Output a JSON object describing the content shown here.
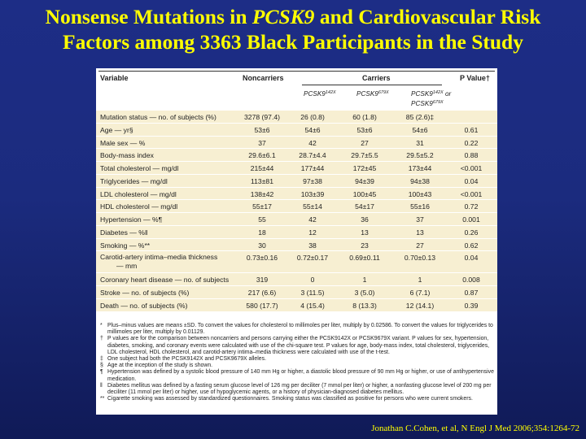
{
  "title": {
    "line1_pre": "Nonsense Mutations in ",
    "line1_gene": "PCSK9",
    "line1_post": " and Cardiovascular Risk",
    "line2": "Factors among 3363 Black Participants in the Study"
  },
  "table": {
    "headers": {
      "variable": "Variable",
      "noncarriers": "Noncarriers",
      "carriers": "Carriers",
      "pvalue": "P Value†",
      "sub1_gene": "PCSK9",
      "sub1_sup": "142X",
      "sub2_gene": "PCSK9",
      "sub2_sup": "679X",
      "sub3_gene_a": "PCSK9",
      "sub3_sup_a": "142X",
      "sub3_or": " or",
      "sub3_gene_b": "PCSK9",
      "sub3_sup_b": "679X"
    },
    "rows": [
      {
        "label": "Mutation status — no. of subjects (%)",
        "values": [
          "3278 (97.4)",
          "26 (0.8)",
          "60 (1.8)",
          "85 (2.6)‡",
          ""
        ]
      },
      {
        "label": "Age — yr§",
        "values": [
          "53±6",
          "54±6",
          "53±6",
          "54±6",
          "0.61"
        ]
      },
      {
        "label": "Male sex — %",
        "values": [
          "37",
          "42",
          "27",
          "31",
          "0.22"
        ]
      },
      {
        "label": "Body-mass index",
        "values": [
          "29.6±6.1",
          "28.7±4.4",
          "29.7±5.5",
          "29.5±5.2",
          "0.88"
        ]
      },
      {
        "label": "Total cholesterol — mg/dl",
        "values": [
          "215±44",
          "177±44",
          "172±45",
          "173±44",
          "<0.001"
        ]
      },
      {
        "label": "Triglycerides — mg/dl",
        "values": [
          "113±81",
          "97±38",
          "94±39",
          "94±38",
          "0.04"
        ]
      },
      {
        "label": "LDL cholesterol — mg/dl",
        "values": [
          "138±42",
          "103±39",
          "100±45",
          "100±43",
          "<0.001"
        ]
      },
      {
        "label": "HDL cholesterol — mg/dl",
        "values": [
          "55±17",
          "55±14",
          "54±17",
          "55±16",
          "0.72"
        ]
      },
      {
        "label": "Hypertension — %¶",
        "values": [
          "55",
          "42",
          "36",
          "37",
          "0.001"
        ]
      },
      {
        "label": "Diabetes — %‖",
        "values": [
          "18",
          "12",
          "13",
          "13",
          "0.26"
        ]
      },
      {
        "label": "Smoking — %**",
        "values": [
          "30",
          "38",
          "23",
          "27",
          "0.62"
        ]
      },
      {
        "label": "Carotid-artery intima–media thickness",
        "label2": "— mm",
        "values": [
          "0.73±0.16",
          "0.72±0.17",
          "0.69±0.11",
          "0.70±0.13",
          "0.04"
        ]
      },
      {
        "label": "Coronary heart disease — no. of subjects",
        "values": [
          "319",
          "0",
          "1",
          "1",
          "0.008"
        ]
      },
      {
        "label": "Stroke — no. of subjects (%)",
        "values": [
          "217 (6.6)",
          "3 (11.5)",
          "3 (5.0)",
          "6 (7.1)",
          "0.87"
        ]
      },
      {
        "label": "Death — no. of subjects (%)",
        "values": [
          "580 (17.7)",
          "4 (15.4)",
          "8 (13.3)",
          "12 (14.1)",
          "0.39"
        ]
      }
    ]
  },
  "footnotes": [
    {
      "sym": "*",
      "text": "Plus–minus values are means ±SD. To convert the values for cholesterol to millimoles per liter, multiply by 0.02586. To convert the values for triglycerides to millimoles per liter, multiply by 0.01129."
    },
    {
      "sym": "†",
      "text": "P values are for the comparison between noncarriers and persons carrying either the PCSK9142X or PCSK9679X variant. P values for sex, hypertension, diabetes, smoking, and coronary events were calculated with use of the chi-square test. P values for age, body-mass index, total cholesterol, triglycerides, LDL cholesterol, HDL cholesterol, and carotid-artery intima–media thickness were calculated with use of the t-test."
    },
    {
      "sym": "‡",
      "text": "One subject had both the PCSK9142X and PCSK9679X alleles."
    },
    {
      "sym": "§",
      "text": "Age at the inception of the study is shown."
    },
    {
      "sym": "¶",
      "text": "Hypertension was defined by a systolic blood pressure of 140 mm Hg or higher, a diastolic blood pressure of 90 mm Hg or higher, or use of antihypertensive medication."
    },
    {
      "sym": "‖",
      "text": "Diabetes mellitus was defined by a fasting serum glucose level of 126 mg per deciliter (7 mmol per liter) or higher, a nonfasting glucose level of 200 mg per deciliter (11 mmol per liter) or higher, use of hypoglycemic agents, or a history of physician-diagnosed diabetes mellitus."
    },
    {
      "sym": "**",
      "text": "Cigarette smoking was assessed by standardized questionnaires. Smoking status was classified as positive for persons who were current smokers."
    }
  ],
  "citation": "Jonathan C.Cohen, et al, N Engl J Med 2006;354:1264-72",
  "colors": {
    "title": "#ffff00",
    "background": "#1d2d86",
    "row_fill": "#f7efd2"
  }
}
